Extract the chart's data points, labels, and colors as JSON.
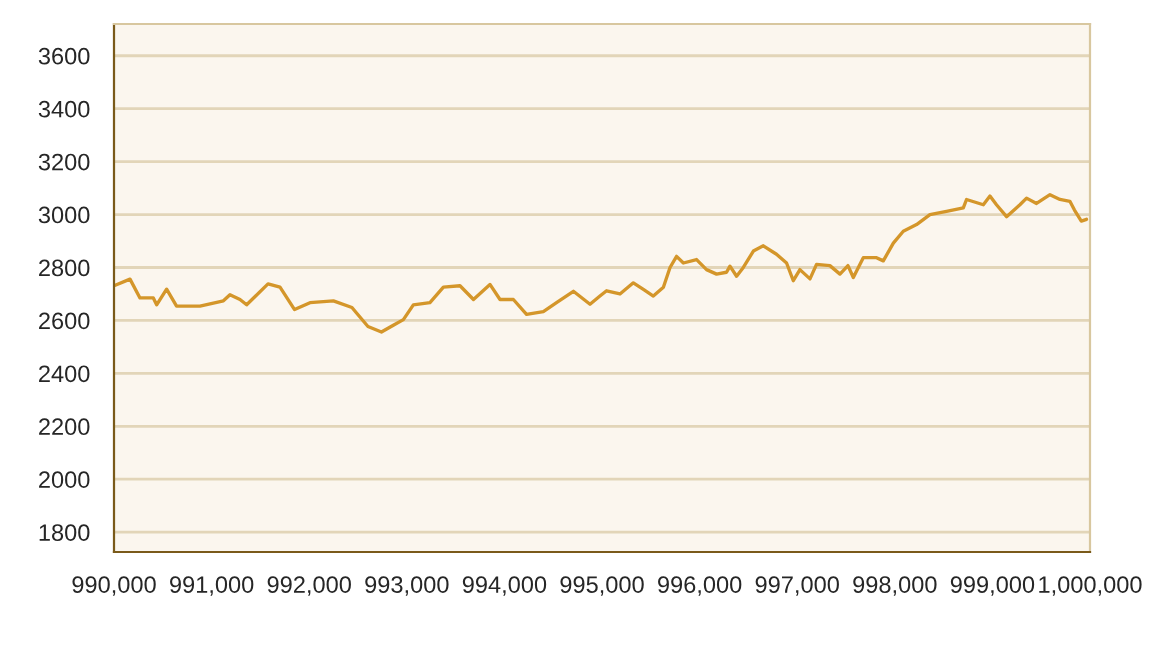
{
  "chart_data": {
    "type": "line",
    "x": [
      990000,
      990164,
      990266,
      990403,
      990437,
      990539,
      990641,
      990881,
      991121,
      991188,
      991291,
      991359,
      991578,
      991701,
      991850,
      992008,
      992248,
      992438,
      992485,
      992602,
      992740,
      992862,
      992965,
      993067,
      993237,
      993375,
      993545,
      993683,
      993852,
      993955,
      994092,
      994227,
      994399,
      994534,
      994707,
      994877,
      994979,
      995047,
      995184,
      995321,
      995424,
      995526,
      995629,
      995697,
      995764,
      995834,
      995969,
      996071,
      996174,
      996276,
      996311,
      996379,
      996448,
      996551,
      996653,
      996788,
      996891,
      996960,
      997028,
      997131,
      997198,
      997335,
      997438,
      997520,
      997575,
      997677,
      997813,
      997882,
      997985,
      998087,
      998223,
      998360,
      998530,
      998702,
      998735,
      998907,
      998975,
      999042,
      999145,
      999282,
      999350,
      999452,
      999590,
      999692,
      999794,
      999841,
      999911,
      999964
    ],
    "series": [
      {
        "color": "#d4962a",
        "values": [
          2731,
          2756,
          2685,
          2685,
          2659,
          2718,
          2654,
          2654,
          2674,
          2697,
          2679,
          2659,
          2738,
          2726,
          2641,
          2667,
          2674,
          2649,
          2628,
          2577,
          2556,
          2582,
          2603,
          2659,
          2667,
          2726,
          2731,
          2679,
          2736,
          2679,
          2679,
          2623,
          2633,
          2667,
          2710,
          2661,
          2692,
          2712,
          2700,
          2742,
          2717,
          2692,
          2725,
          2800,
          2842,
          2817,
          2830,
          2792,
          2775,
          2782,
          2805,
          2767,
          2800,
          2862,
          2882,
          2850,
          2817,
          2750,
          2792,
          2757,
          2812,
          2807,
          2775,
          2807,
          2762,
          2837,
          2837,
          2825,
          2892,
          2937,
          2962,
          3000,
          3012,
          3025,
          3057,
          3037,
          3070,
          3037,
          2992,
          3037,
          3062,
          3042,
          3075,
          3057,
          3050,
          3017,
          2975,
          2982
        ]
      }
    ],
    "xlim": [
      990000,
      1000000
    ],
    "xticks": [
      {
        "value": 990000,
        "label": "990,000"
      },
      {
        "value": 991000,
        "label": "991,000"
      },
      {
        "value": 992000,
        "label": "992,000"
      },
      {
        "value": 993000,
        "label": "993,000"
      },
      {
        "value": 994000,
        "label": "994,000"
      },
      {
        "value": 995000,
        "label": "995,000"
      },
      {
        "value": 996000,
        "label": "996,000"
      },
      {
        "value": 997000,
        "label": "997,000"
      },
      {
        "value": 998000,
        "label": "998,000"
      },
      {
        "value": 999000,
        "label": "999,000"
      },
      {
        "value": 1000000,
        "label": "1,000,000"
      }
    ],
    "ylim": [
      1725,
      3720
    ],
    "yticks": [
      1800,
      2000,
      2200,
      2400,
      2600,
      2800,
      3000,
      3200,
      3400,
      3600
    ],
    "grid": "y",
    "marker": "none",
    "line_style": "solid"
  }
}
